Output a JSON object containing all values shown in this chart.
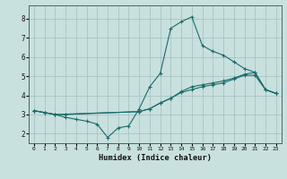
{
  "xlabel": "Humidex (Indice chaleur)",
  "bg_color": "#c8e0de",
  "grid_color": "#a0c0be",
  "line_color": "#1a6b6b",
  "xlim": [
    -0.5,
    23.5
  ],
  "ylim": [
    1.5,
    8.7
  ],
  "xticks": [
    0,
    1,
    2,
    3,
    4,
    5,
    6,
    7,
    8,
    9,
    10,
    11,
    12,
    13,
    14,
    15,
    16,
    17,
    18,
    19,
    20,
    21,
    22,
    23
  ],
  "yticks": [
    2,
    3,
    4,
    5,
    6,
    7,
    8
  ],
  "line1_x": [
    0,
    1,
    2,
    3,
    4,
    5,
    6,
    7,
    8,
    9,
    10,
    11,
    12,
    13,
    14,
    15,
    16,
    17,
    18,
    19,
    20,
    21,
    22,
    23
  ],
  "line1_y": [
    3.2,
    3.1,
    3.0,
    2.85,
    2.75,
    2.65,
    2.5,
    1.8,
    2.3,
    2.4,
    3.3,
    4.45,
    5.15,
    7.5,
    7.85,
    8.1,
    6.6,
    6.3,
    6.1,
    5.75,
    5.4,
    5.2,
    4.3,
    4.1
  ],
  "line2_x": [
    0,
    1,
    2,
    3,
    10,
    11,
    12,
    13,
    14,
    15,
    16,
    17,
    18,
    19,
    20,
    21,
    22,
    23
  ],
  "line2_y": [
    3.2,
    3.1,
    3.0,
    3.0,
    3.15,
    3.3,
    3.6,
    3.85,
    4.15,
    4.3,
    4.45,
    4.55,
    4.65,
    4.85,
    5.05,
    5.05,
    4.3,
    4.1
  ],
  "line3_x": [
    0,
    1,
    2,
    10,
    11,
    12,
    13,
    14,
    15,
    16,
    17,
    18,
    19,
    20,
    21,
    22,
    23
  ],
  "line3_y": [
    3.2,
    3.1,
    3.0,
    3.15,
    3.3,
    3.6,
    3.85,
    4.2,
    4.45,
    4.55,
    4.65,
    4.75,
    4.9,
    5.1,
    5.2,
    4.3,
    4.1
  ]
}
